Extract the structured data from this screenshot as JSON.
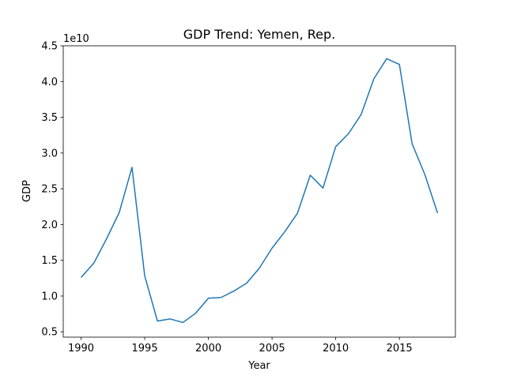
{
  "chart_data": {
    "type": "line",
    "title": "GDP Trend: Yemen, Rep.",
    "xlabel": "Year",
    "ylabel": "GDP",
    "y_offset_text": "1e10",
    "xlim": [
      1988.6,
      2019.4
    ],
    "ylim": [
      4250000000.0,
      45000000000.0
    ],
    "grid": false,
    "xticks": [
      1990,
      1995,
      2000,
      2005,
      2010,
      2015
    ],
    "yticks": [
      {
        "value": 5000000000.0,
        "label": "0.5"
      },
      {
        "value": 10000000000.0,
        "label": "1.0"
      },
      {
        "value": 15000000000.0,
        "label": "1.5"
      },
      {
        "value": 20000000000.0,
        "label": "2.0"
      },
      {
        "value": 25000000000.0,
        "label": "2.5"
      },
      {
        "value": 30000000000.0,
        "label": "3.0"
      },
      {
        "value": 35000000000.0,
        "label": "3.5"
      },
      {
        "value": 40000000000.0,
        "label": "4.0"
      },
      {
        "value": 45000000000.0,
        "label": "4.5"
      }
    ],
    "series": [
      {
        "color": "#1f77b4",
        "x": [
          1990,
          1991,
          1992,
          1993,
          1994,
          1995,
          1996,
          1997,
          1998,
          1999,
          2000,
          2001,
          2002,
          2003,
          2004,
          2005,
          2006,
          2007,
          2008,
          2009,
          2010,
          2011,
          2012,
          2013,
          2014,
          2015,
          2016,
          2017,
          2018
        ],
        "y": [
          12600000000.0,
          14600000000.0,
          18000000000.0,
          21700000000.0,
          28000000000.0,
          12800000000.0,
          6500000000.0,
          6800000000.0,
          6300000000.0,
          7600000000.0,
          9700000000.0,
          9800000000.0,
          10700000000.0,
          11800000000.0,
          13900000000.0,
          16700000000.0,
          19000000000.0,
          21600000000.0,
          26900000000.0,
          25100000000.0,
          30900000000.0,
          32700000000.0,
          35400000000.0,
          40400000000.0,
          43200000000.0,
          42400000000.0,
          31300000000.0,
          27000000000.0,
          21600000000.0
        ]
      }
    ]
  }
}
